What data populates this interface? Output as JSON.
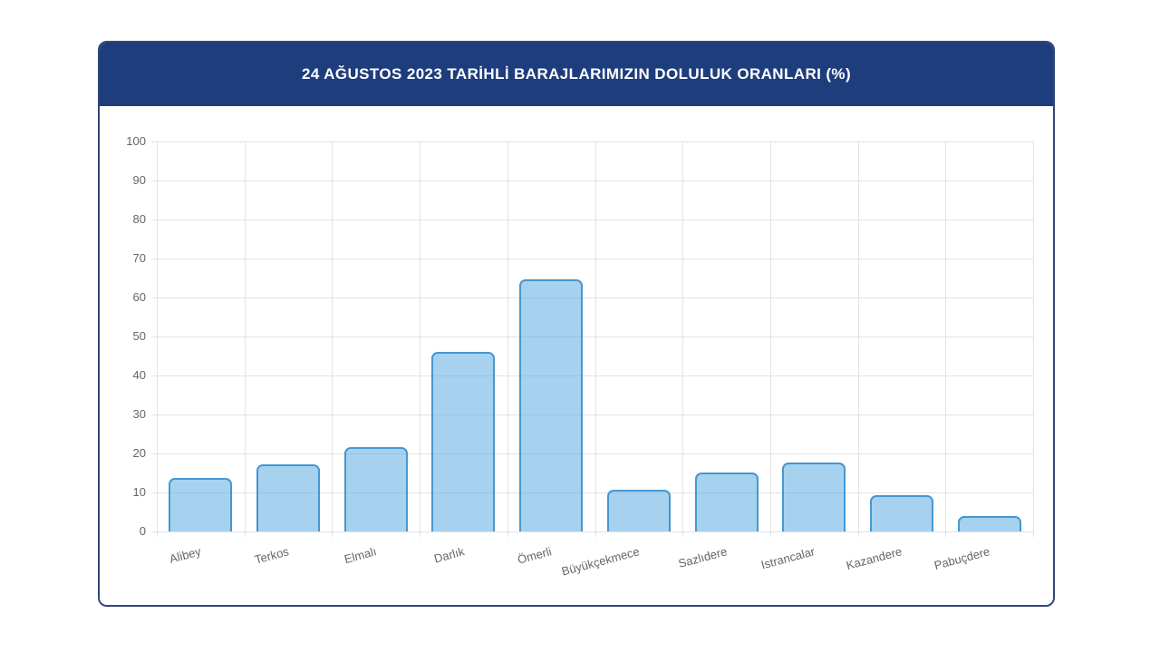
{
  "page": {
    "background": "#ffffff"
  },
  "card": {
    "background": "#ffffff",
    "border_color": "#2f4679"
  },
  "header": {
    "title": "24 AĞUSTOS 2023 TARİHLİ BARAJLARIMIZIN DOLULUK ORANLARI (%)",
    "background": "#1e3d7d",
    "text_color": "#ffffff"
  },
  "chart_data": {
    "type": "bar",
    "title": "24 AĞUSTOS 2023 TARİHLİ BARAJLARIMIZIN DOLULUK ORANLARI (%)",
    "categories": [
      "Alibey",
      "Terkos",
      "Elmalı",
      "Darlık",
      "Ömerli",
      "Büyükçekmece",
      "Sazlıdere",
      "Istrancalar",
      "Kazandere",
      "Pabuçdere"
    ],
    "values": [
      13.7,
      17.3,
      21.7,
      46.1,
      64.7,
      10.7,
      15.2,
      17.7,
      9.3,
      4.0
    ],
    "xlabel": "",
    "ylabel": "",
    "ylim": [
      0,
      100
    ],
    "ytick_step": 10,
    "yticks": [
      0,
      10,
      20,
      30,
      40,
      50,
      60,
      70,
      80,
      90,
      100
    ],
    "grid": true,
    "legend": false,
    "colors": {
      "bar_fill": "rgba(77,166,223,0.5)",
      "bar_border": "#4697d2",
      "gridline": "#e2e2e2",
      "tick_label": "#666666"
    }
  }
}
